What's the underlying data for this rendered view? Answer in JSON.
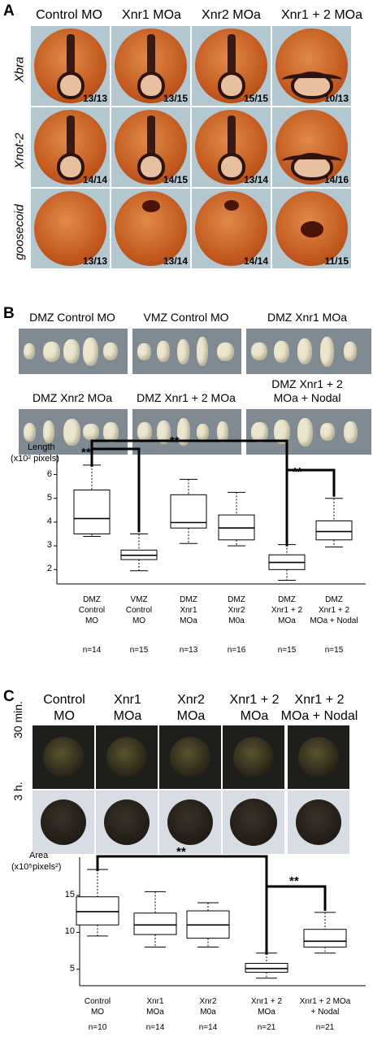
{
  "panelA": {
    "letter": "A",
    "headers": [
      "Control MO",
      "Xnr1 MOa",
      "Xnr2 MOa",
      "Xnr1 + 2 MOa"
    ],
    "rows": [
      {
        "label": "Xbra",
        "ratios": [
          "13/13",
          "13/15",
          "15/15",
          "10/13"
        ]
      },
      {
        "label": "Xnot-2",
        "ratios": [
          "14/14",
          "14/15",
          "13/14",
          "14/16"
        ]
      },
      {
        "label": "goosecoid",
        "ratios": [
          "13/13",
          "13/14",
          "14/14",
          "11/15"
        ]
      }
    ]
  },
  "panelB": {
    "letter": "B",
    "photo_labels": [
      "DMZ Control MO",
      "VMZ Control MO",
      "DMZ Xnr1 MOa",
      "DMZ Xnr2 MOa",
      "DMZ Xnr1 + 2 MOa",
      "DMZ Xnr1 + 2",
      "MOa + Nodal"
    ],
    "significance": [
      "**",
      "**",
      "**"
    ]
  },
  "panelC": {
    "letter": "C",
    "headers": [
      [
        "Control",
        "MO"
      ],
      [
        "Xnr1",
        "MOa"
      ],
      [
        "Xnr2",
        "MOa"
      ],
      [
        "Xnr1 + 2",
        "MOa"
      ],
      [
        "Xnr1 + 2",
        "MOa + Nodal"
      ]
    ],
    "row_labels": [
      "30 min.",
      "3 h."
    ],
    "significance": [
      "**",
      "**"
    ]
  },
  "chart_data": [
    {
      "type": "boxplot",
      "ylabel": "Length",
      "ylabel_unit": "(x10² pixels)",
      "ylim": [
        1.6,
        6.6
      ],
      "yticks": [
        2,
        3,
        4,
        5,
        6
      ],
      "categories": [
        "DMZ\nControl\nMO",
        "VMZ\nControl\nMO",
        "DMZ\nXnr1\nMOa",
        "DMZ\nXnr2\nM0a",
        "DMZ\nXnr1 + 2\nMOa",
        "DMZ\nXnr1 + 2\nMOa + Nodal"
      ],
      "n": [
        "n=14",
        "n=15",
        "n=13",
        "n=16",
        "n=15",
        "n=15"
      ],
      "boxes": [
        {
          "min": 3.4,
          "q1": 3.5,
          "median": 4.15,
          "q3": 5.35,
          "max": 6.4
        },
        {
          "min": 1.95,
          "q1": 2.42,
          "median": 2.6,
          "q3": 2.82,
          "max": 3.5
        },
        {
          "min": 3.1,
          "q1": 3.75,
          "median": 3.98,
          "q3": 5.15,
          "max": 5.8
        },
        {
          "min": 3.0,
          "q1": 3.25,
          "median": 3.75,
          "q3": 4.3,
          "max": 5.25
        },
        {
          "min": 1.55,
          "q1": 2.0,
          "median": 2.3,
          "q3": 2.62,
          "max": 3.05
        },
        {
          "min": 2.95,
          "q1": 3.25,
          "median": 3.6,
          "q3": 4.05,
          "max": 5.0
        }
      ]
    },
    {
      "type": "boxplot",
      "ylabel": "Area",
      "ylabel_unit": "(x10⁵pixels²)",
      "ylim": [
        3.0,
        19.5
      ],
      "yticks": [
        5,
        10,
        15
      ],
      "categories": [
        "Control\nMO",
        "Xnr1\nMOa",
        "Xnr2\nM0a",
        "Xnr1 + 2\nMOa",
        "Xnr1 + 2  MOa\n+ Nodal"
      ],
      "n": [
        "n=10",
        "n=14",
        "n=14",
        "n=21",
        "n=21"
      ],
      "boxes": [
        {
          "min": 9.5,
          "q1": 11.0,
          "median": 12.8,
          "q3": 14.8,
          "max": 18.5
        },
        {
          "min": 8.0,
          "q1": 9.7,
          "median": 11.0,
          "q3": 12.6,
          "max": 15.5
        },
        {
          "min": 8.0,
          "q1": 9.2,
          "median": 11.0,
          "q3": 12.9,
          "max": 14.0
        },
        {
          "min": 3.8,
          "q1": 4.6,
          "median": 5.1,
          "q3": 5.8,
          "max": 7.2
        },
        {
          "min": 7.2,
          "q1": 8.0,
          "median": 8.8,
          "q3": 10.4,
          "max": 12.7
        }
      ]
    }
  ]
}
